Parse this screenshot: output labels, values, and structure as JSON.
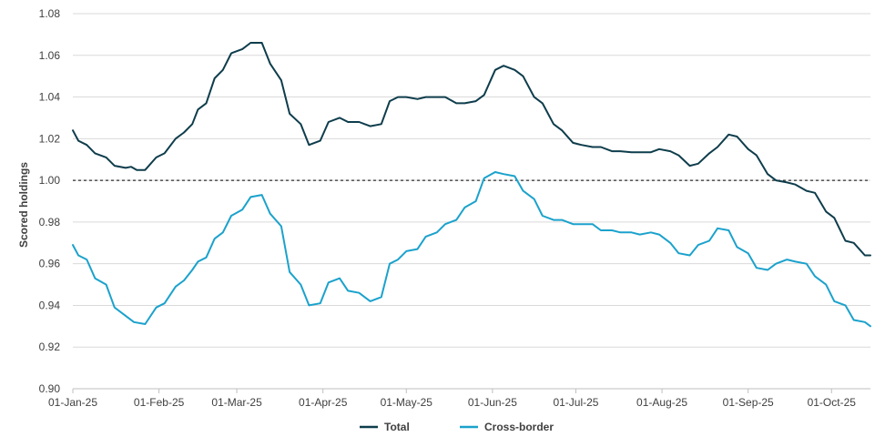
{
  "chart_data": {
    "type": "line",
    "title": "",
    "xlabel": "",
    "ylabel": "Scored holdings",
    "ylim": [
      0.9,
      1.08
    ],
    "yticks": [
      "0.90",
      "0.92",
      "0.94",
      "0.96",
      "0.98",
      "1.00",
      "1.02",
      "1.04",
      "1.06",
      "1.08"
    ],
    "xlim": [
      "2025-01-01",
      "2025-10-15"
    ],
    "xticks": [
      {
        "date": "2025-01-01",
        "label": "01-Jan-25"
      },
      {
        "date": "2025-02-01",
        "label": "01-Feb-25"
      },
      {
        "date": "2025-03-01",
        "label": "01-Mar-25"
      },
      {
        "date": "2025-04-01",
        "label": "01-Apr-25"
      },
      {
        "date": "2025-05-01",
        "label": "01-May-25"
      },
      {
        "date": "2025-06-01",
        "label": "01-Jun-25"
      },
      {
        "date": "2025-07-01",
        "label": "01-Jul-25"
      },
      {
        "date": "2025-08-01",
        "label": "01-Aug-25"
      },
      {
        "date": "2025-09-01",
        "label": "01-Sep-25"
      },
      {
        "date": "2025-10-01",
        "label": "01-Oct-25"
      }
    ],
    "grid": true,
    "reference_line": {
      "y": 1.0,
      "style": "dashed"
    },
    "legend": {
      "position": "bottom"
    },
    "series": [
      {
        "name": "Total",
        "color": "#0e3d4c",
        "points": [
          [
            "2025-01-01",
            1.024
          ],
          [
            "2025-01-03",
            1.019
          ],
          [
            "2025-01-06",
            1.017
          ],
          [
            "2025-01-09",
            1.013
          ],
          [
            "2025-01-13",
            1.011
          ],
          [
            "2025-01-16",
            1.007
          ],
          [
            "2025-01-20",
            1.006
          ],
          [
            "2025-01-22",
            1.0065
          ],
          [
            "2025-01-24",
            1.005
          ],
          [
            "2025-01-27",
            1.005
          ],
          [
            "2025-01-31",
            1.011
          ],
          [
            "2025-02-03",
            1.013
          ],
          [
            "2025-02-07",
            1.02
          ],
          [
            "2025-02-10",
            1.023
          ],
          [
            "2025-02-13",
            1.027
          ],
          [
            "2025-02-15",
            1.034
          ],
          [
            "2025-02-18",
            1.037
          ],
          [
            "2025-02-21",
            1.049
          ],
          [
            "2025-02-24",
            1.053
          ],
          [
            "2025-02-27",
            1.061
          ],
          [
            "2025-03-03",
            1.063
          ],
          [
            "2025-03-06",
            1.066
          ],
          [
            "2025-03-10",
            1.066
          ],
          [
            "2025-03-13",
            1.056
          ],
          [
            "2025-03-17",
            1.048
          ],
          [
            "2025-03-20",
            1.032
          ],
          [
            "2025-03-24",
            1.027
          ],
          [
            "2025-03-27",
            1.017
          ],
          [
            "2025-03-31",
            1.019
          ],
          [
            "2025-04-03",
            1.028
          ],
          [
            "2025-04-07",
            1.03
          ],
          [
            "2025-04-10",
            1.028
          ],
          [
            "2025-04-14",
            1.028
          ],
          [
            "2025-04-16",
            1.027
          ],
          [
            "2025-04-18",
            1.026
          ],
          [
            "2025-04-22",
            1.027
          ],
          [
            "2025-04-25",
            1.038
          ],
          [
            "2025-04-28",
            1.04
          ],
          [
            "2025-05-01",
            1.04
          ],
          [
            "2025-05-05",
            1.039
          ],
          [
            "2025-05-08",
            1.04
          ],
          [
            "2025-05-12",
            1.04
          ],
          [
            "2025-05-15",
            1.04
          ],
          [
            "2025-05-19",
            1.037
          ],
          [
            "2025-05-22",
            1.037
          ],
          [
            "2025-05-26",
            1.038
          ],
          [
            "2025-05-29",
            1.041
          ],
          [
            "2025-06-02",
            1.053
          ],
          [
            "2025-06-05",
            1.055
          ],
          [
            "2025-06-09",
            1.053
          ],
          [
            "2025-06-12",
            1.05
          ],
          [
            "2025-06-16",
            1.04
          ],
          [
            "2025-06-19",
            1.037
          ],
          [
            "2025-06-23",
            1.027
          ],
          [
            "2025-06-26",
            1.024
          ],
          [
            "2025-06-30",
            1.018
          ],
          [
            "2025-07-03",
            1.017
          ],
          [
            "2025-07-07",
            1.016
          ],
          [
            "2025-07-10",
            1.016
          ],
          [
            "2025-07-14",
            1.014
          ],
          [
            "2025-07-17",
            1.014
          ],
          [
            "2025-07-21",
            1.0135
          ],
          [
            "2025-07-28",
            1.0135
          ],
          [
            "2025-07-31",
            1.015
          ],
          [
            "2025-08-04",
            1.014
          ],
          [
            "2025-08-07",
            1.012
          ],
          [
            "2025-08-11",
            1.007
          ],
          [
            "2025-08-14",
            1.008
          ],
          [
            "2025-08-18",
            1.013
          ],
          [
            "2025-08-21",
            1.016
          ],
          [
            "2025-08-25",
            1.022
          ],
          [
            "2025-08-28",
            1.021
          ],
          [
            "2025-09-01",
            1.015
          ],
          [
            "2025-09-04",
            1.012
          ],
          [
            "2025-09-08",
            1.003
          ],
          [
            "2025-09-11",
            1.0
          ],
          [
            "2025-09-15",
            0.999
          ],
          [
            "2025-09-18",
            0.998
          ],
          [
            "2025-09-22",
            0.995
          ],
          [
            "2025-09-25",
            0.994
          ],
          [
            "2025-09-29",
            0.985
          ],
          [
            "2025-10-02",
            0.982
          ],
          [
            "2025-10-06",
            0.971
          ],
          [
            "2025-10-09",
            0.97
          ],
          [
            "2025-10-13",
            0.964
          ],
          [
            "2025-10-15",
            0.964
          ]
        ]
      },
      {
        "name": "Cross-border",
        "color": "#1ba2cc",
        "points": [
          [
            "2025-01-01",
            0.969
          ],
          [
            "2025-01-03",
            0.964
          ],
          [
            "2025-01-06",
            0.962
          ],
          [
            "2025-01-09",
            0.953
          ],
          [
            "2025-01-13",
            0.95
          ],
          [
            "2025-01-16",
            0.939
          ],
          [
            "2025-01-20",
            0.935
          ],
          [
            "2025-01-23",
            0.932
          ],
          [
            "2025-01-27",
            0.931
          ],
          [
            "2025-01-31",
            0.939
          ],
          [
            "2025-02-03",
            0.941
          ],
          [
            "2025-02-07",
            0.949
          ],
          [
            "2025-02-10",
            0.952
          ],
          [
            "2025-02-13",
            0.957
          ],
          [
            "2025-02-15",
            0.961
          ],
          [
            "2025-02-18",
            0.963
          ],
          [
            "2025-02-21",
            0.972
          ],
          [
            "2025-02-24",
            0.975
          ],
          [
            "2025-02-27",
            0.983
          ],
          [
            "2025-03-03",
            0.986
          ],
          [
            "2025-03-06",
            0.992
          ],
          [
            "2025-03-10",
            0.993
          ],
          [
            "2025-03-13",
            0.984
          ],
          [
            "2025-03-17",
            0.978
          ],
          [
            "2025-03-20",
            0.956
          ],
          [
            "2025-03-24",
            0.95
          ],
          [
            "2025-03-27",
            0.94
          ],
          [
            "2025-03-31",
            0.941
          ],
          [
            "2025-04-03",
            0.951
          ],
          [
            "2025-04-07",
            0.953
          ],
          [
            "2025-04-10",
            0.947
          ],
          [
            "2025-04-14",
            0.946
          ],
          [
            "2025-04-16",
            0.944
          ],
          [
            "2025-04-18",
            0.942
          ],
          [
            "2025-04-22",
            0.944
          ],
          [
            "2025-04-25",
            0.96
          ],
          [
            "2025-04-28",
            0.962
          ],
          [
            "2025-05-01",
            0.966
          ],
          [
            "2025-05-05",
            0.967
          ],
          [
            "2025-05-08",
            0.973
          ],
          [
            "2025-05-12",
            0.975
          ],
          [
            "2025-05-15",
            0.979
          ],
          [
            "2025-05-19",
            0.981
          ],
          [
            "2025-05-22",
            0.987
          ],
          [
            "2025-05-26",
            0.99
          ],
          [
            "2025-05-29",
            1.001
          ],
          [
            "2025-06-02",
            1.004
          ],
          [
            "2025-06-05",
            1.003
          ],
          [
            "2025-06-09",
            1.002
          ],
          [
            "2025-06-12",
            0.995
          ],
          [
            "2025-06-16",
            0.991
          ],
          [
            "2025-06-19",
            0.983
          ],
          [
            "2025-06-23",
            0.981
          ],
          [
            "2025-06-26",
            0.981
          ],
          [
            "2025-06-30",
            0.979
          ],
          [
            "2025-07-03",
            0.979
          ],
          [
            "2025-07-07",
            0.979
          ],
          [
            "2025-07-10",
            0.976
          ],
          [
            "2025-07-14",
            0.976
          ],
          [
            "2025-07-17",
            0.975
          ],
          [
            "2025-07-21",
            0.975
          ],
          [
            "2025-07-24",
            0.974
          ],
          [
            "2025-07-28",
            0.975
          ],
          [
            "2025-07-31",
            0.974
          ],
          [
            "2025-08-04",
            0.97
          ],
          [
            "2025-08-07",
            0.965
          ],
          [
            "2025-08-11",
            0.964
          ],
          [
            "2025-08-14",
            0.969
          ],
          [
            "2025-08-18",
            0.971
          ],
          [
            "2025-08-21",
            0.977
          ],
          [
            "2025-08-25",
            0.976
          ],
          [
            "2025-08-28",
            0.968
          ],
          [
            "2025-09-01",
            0.965
          ],
          [
            "2025-09-04",
            0.958
          ],
          [
            "2025-09-08",
            0.957
          ],
          [
            "2025-09-11",
            0.96
          ],
          [
            "2025-09-15",
            0.962
          ],
          [
            "2025-09-18",
            0.961
          ],
          [
            "2025-09-22",
            0.96
          ],
          [
            "2025-09-25",
            0.954
          ],
          [
            "2025-09-29",
            0.95
          ],
          [
            "2025-10-02",
            0.942
          ],
          [
            "2025-10-06",
            0.94
          ],
          [
            "2025-10-09",
            0.933
          ],
          [
            "2025-10-13",
            0.932
          ],
          [
            "2025-10-15",
            0.93
          ]
        ]
      }
    ]
  }
}
